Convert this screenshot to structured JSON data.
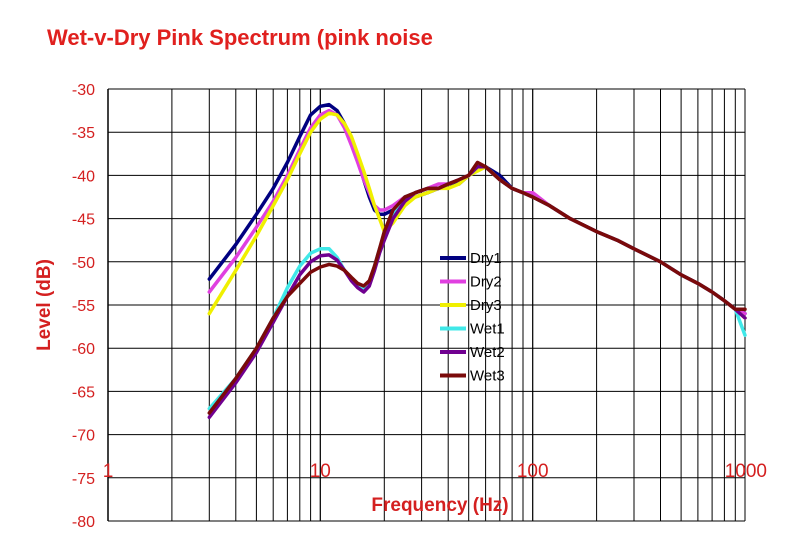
{
  "chart_data": {
    "type": "line",
    "title": "Wet-v-Dry Pink Spectrum (pink noise",
    "xlabel": "Frequency (Hz)",
    "ylabel": "Level (dB)",
    "x_scale": "log",
    "xlim": [
      1,
      1000
    ],
    "ylim": [
      -80,
      -30
    ],
    "x_ticks": [
      1,
      10,
      100,
      1000
    ],
    "x_tick_labels": [
      "1",
      "10",
      "100",
      "1000"
    ],
    "y_ticks": [
      -30,
      -35,
      -40,
      -45,
      -50,
      -55,
      -60,
      -65,
      -70,
      -75,
      -80
    ],
    "y_tick_labels": [
      "-30",
      "-35",
      "-40",
      "-45",
      "-50",
      "-55",
      "-60",
      "-65",
      "-70",
      "-75",
      "-80"
    ],
    "grid": true,
    "legend_position": "center",
    "series": [
      {
        "name": "Dry1",
        "color": "#000080",
        "x": [
          3,
          4,
          5,
          6,
          7,
          8,
          9,
          10,
          11,
          12,
          13,
          14,
          15,
          16,
          17,
          18,
          19,
          20,
          22,
          25,
          28,
          32,
          36,
          40,
          45,
          50,
          55,
          60,
          70,
          80,
          90,
          100,
          120,
          150,
          200,
          250,
          300,
          400,
          500,
          600,
          700,
          800,
          900,
          1000
        ],
        "y": [
          -52,
          -48,
          -44.5,
          -41.5,
          -38.5,
          -35.5,
          -33,
          -32,
          -31.8,
          -32.5,
          -34,
          -36,
          -38,
          -40.5,
          -42.5,
          -44,
          -44.5,
          -44.5,
          -44,
          -43,
          -42.5,
          -42,
          -41.5,
          -41,
          -41,
          -40,
          -39,
          -39,
          -40,
          -41.5,
          -42,
          -42.5,
          -43.5,
          -45,
          -46.5,
          -47.5,
          -48.5,
          -50,
          -51.5,
          -52.5,
          -53.5,
          -54.5,
          -55.5,
          -56
        ]
      },
      {
        "name": "Dry2",
        "color": "#e040e0",
        "x": [
          3,
          4,
          5,
          6,
          7,
          8,
          9,
          10,
          11,
          12,
          13,
          14,
          15,
          16,
          17,
          18,
          19,
          20,
          22,
          25,
          28,
          32,
          36,
          40,
          45,
          50,
          55,
          60,
          70,
          80,
          90,
          100,
          120,
          150,
          200,
          250,
          300,
          400,
          500,
          600,
          700,
          800,
          900,
          1000
        ],
        "y": [
          -53.5,
          -49.5,
          -46,
          -43,
          -40,
          -37,
          -34.5,
          -33,
          -32.5,
          -33,
          -34.5,
          -36.5,
          -38.5,
          -40.5,
          -42,
          -43.5,
          -44,
          -44,
          -43.5,
          -42.5,
          -42,
          -41.5,
          -41,
          -41,
          -40.5,
          -40,
          -39,
          -39,
          -40.5,
          -41.5,
          -42,
          -42,
          -43.5,
          -45,
          -46.5,
          -47.5,
          -48.5,
          -50,
          -51.5,
          -52.5,
          -53.5,
          -54.5,
          -55.5,
          -56
        ]
      },
      {
        "name": "Dry3",
        "color": "#f0f000",
        "x": [
          3,
          4,
          5,
          6,
          7,
          8,
          9,
          10,
          11,
          12,
          13,
          14,
          15,
          16,
          17,
          18,
          19,
          20,
          22,
          25,
          28,
          32,
          36,
          40,
          45,
          50,
          55,
          60,
          70,
          80,
          90,
          100,
          120,
          150,
          200,
          250,
          300,
          400,
          500,
          600,
          700,
          800,
          900,
          1000
        ],
        "y": [
          -56,
          -51,
          -47,
          -43.5,
          -40.5,
          -37.5,
          -35,
          -33.5,
          -32.8,
          -33,
          -34,
          -35.5,
          -37.5,
          -39.5,
          -41.5,
          -43.5,
          -45,
          -46.5,
          -45.5,
          -43.5,
          -42.5,
          -42,
          -41.5,
          -41.5,
          -41,
          -40,
          -39.5,
          -39,
          -40.5,
          -41.5,
          -42,
          -42.5,
          -43.5,
          -45,
          -46.5,
          -47.5,
          -48.5,
          -50,
          -51.5,
          -52.5,
          -53.5,
          -54.5,
          -55.5,
          -56.5
        ]
      },
      {
        "name": "Wet1",
        "color": "#40e8e8",
        "x": [
          3,
          4,
          5,
          6,
          7,
          8,
          9,
          10,
          11,
          12,
          13,
          14,
          15,
          16,
          17,
          18,
          19,
          20,
          22,
          25,
          28,
          32,
          36,
          40,
          45,
          50,
          55,
          60,
          70,
          80,
          90,
          100,
          120,
          150,
          200,
          250,
          300,
          400,
          500,
          600,
          700,
          800,
          900,
          1000
        ],
        "y": [
          -67,
          -63.5,
          -60,
          -56.5,
          -53,
          -50.5,
          -49,
          -48.5,
          -48.5,
          -49.5,
          -51,
          -52,
          -52.8,
          -53.2,
          -52.5,
          -50.5,
          -48.5,
          -47,
          -44.5,
          -42.5,
          -42,
          -41.5,
          -41.5,
          -41,
          -40.5,
          -40,
          -39,
          -39,
          -40.5,
          -41.5,
          -42,
          -42.5,
          -43.5,
          -45,
          -46.5,
          -47.5,
          -48.5,
          -50,
          -51.5,
          -52.5,
          -53.5,
          -54.5,
          -55.5,
          -58.5
        ]
      },
      {
        "name": "Wet2",
        "color": "#700090",
        "x": [
          3,
          4,
          5,
          6,
          7,
          8,
          9,
          10,
          11,
          12,
          13,
          14,
          15,
          16,
          17,
          18,
          19,
          20,
          22,
          25,
          28,
          32,
          36,
          40,
          45,
          50,
          55,
          60,
          70,
          80,
          90,
          100,
          120,
          150,
          200,
          250,
          300,
          400,
          500,
          600,
          700,
          800,
          900,
          1000
        ],
        "y": [
          -68,
          -64,
          -60.5,
          -57,
          -54,
          -51.5,
          -50,
          -49.3,
          -49.2,
          -49.8,
          -51,
          -52.2,
          -53,
          -53.5,
          -52.8,
          -51,
          -49,
          -47.5,
          -45,
          -43,
          -42,
          -41.5,
          -41.5,
          -41,
          -40.5,
          -40,
          -39,
          -39,
          -40.5,
          -41.5,
          -42,
          -42.5,
          -43.5,
          -45,
          -46.5,
          -47.5,
          -48.5,
          -50,
          -51.5,
          -52.5,
          -53.5,
          -54.5,
          -55.5,
          -56.5
        ]
      },
      {
        "name": "Wet3",
        "color": "#7a0a0a",
        "x": [
          3,
          4,
          5,
          6,
          7,
          8,
          9,
          10,
          11,
          12,
          13,
          14,
          15,
          16,
          17,
          18,
          19,
          20,
          22,
          25,
          28,
          32,
          36,
          40,
          45,
          50,
          55,
          60,
          70,
          80,
          90,
          100,
          120,
          150,
          200,
          250,
          300,
          400,
          500,
          600,
          700,
          800,
          900,
          1000
        ],
        "y": [
          -67.5,
          -63.5,
          -60,
          -56.5,
          -54,
          -52.5,
          -51.2,
          -50.6,
          -50.3,
          -50.5,
          -51,
          -51.8,
          -52.5,
          -52.8,
          -52.2,
          -50.5,
          -48.5,
          -46.5,
          -44,
          -42.5,
          -42,
          -41.5,
          -41.5,
          -41,
          -40.5,
          -40,
          -38.5,
          -39,
          -40.5,
          -41.5,
          -42,
          -42.5,
          -43.5,
          -45,
          -46.5,
          -47.5,
          -48.5,
          -50,
          -51.5,
          -52.5,
          -53.5,
          -54.5,
          -55.5,
          -55.5
        ]
      }
    ]
  }
}
